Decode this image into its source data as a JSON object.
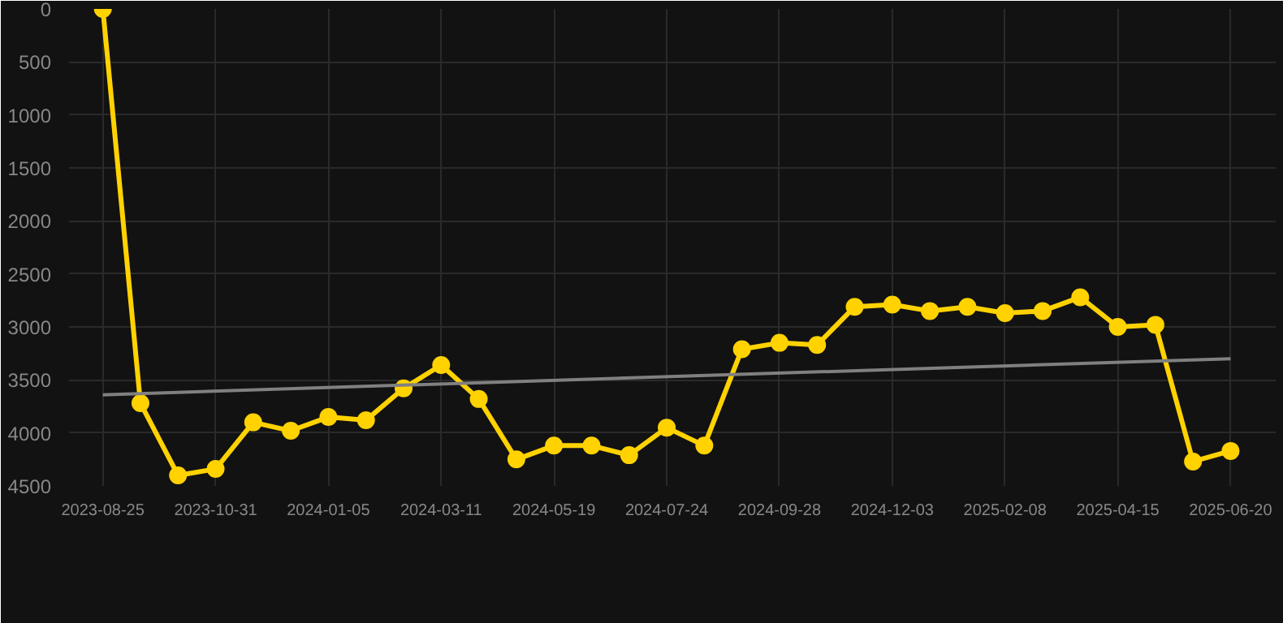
{
  "chart_data": {
    "type": "line",
    "categories": [
      "2023-08-25",
      null,
      null,
      "2023-10-31",
      null,
      null,
      "2024-01-05",
      null,
      null,
      "2024-03-11",
      null,
      null,
      "2024-05-19",
      null,
      null,
      "2024-07-24",
      null,
      null,
      "2024-09-28",
      null,
      null,
      "2024-12-03",
      null,
      null,
      "2025-02-08",
      null,
      null,
      "2025-04-15",
      null,
      null,
      "2025-06-20"
    ],
    "series": [
      {
        "color": "#ffd200",
        "marker": "circle",
        "values": [
          0,
          3720,
          4400,
          4340,
          3900,
          3980,
          3850,
          3880,
          3580,
          3360,
          3680,
          4250,
          4120,
          4120,
          4210,
          3950,
          4120,
          3210,
          3150,
          3170,
          2810,
          2790,
          2850,
          2810,
          2870,
          2850,
          2720,
          3000,
          2980,
          4270,
          4170
        ]
      },
      {
        "type": "line",
        "color": "#808080",
        "marker": "none",
        "values": [
          3640,
          null,
          null,
          null,
          null,
          null,
          null,
          null,
          null,
          null,
          null,
          null,
          null,
          null,
          null,
          null,
          null,
          null,
          null,
          null,
          null,
          null,
          null,
          null,
          null,
          null,
          null,
          null,
          null,
          null,
          3300
        ]
      }
    ],
    "ylim": [
      4500,
      0
    ],
    "yticks": [
      0,
      500,
      1000,
      1500,
      2000,
      2500,
      3000,
      3500,
      4000,
      4500
    ],
    "grid": true
  }
}
